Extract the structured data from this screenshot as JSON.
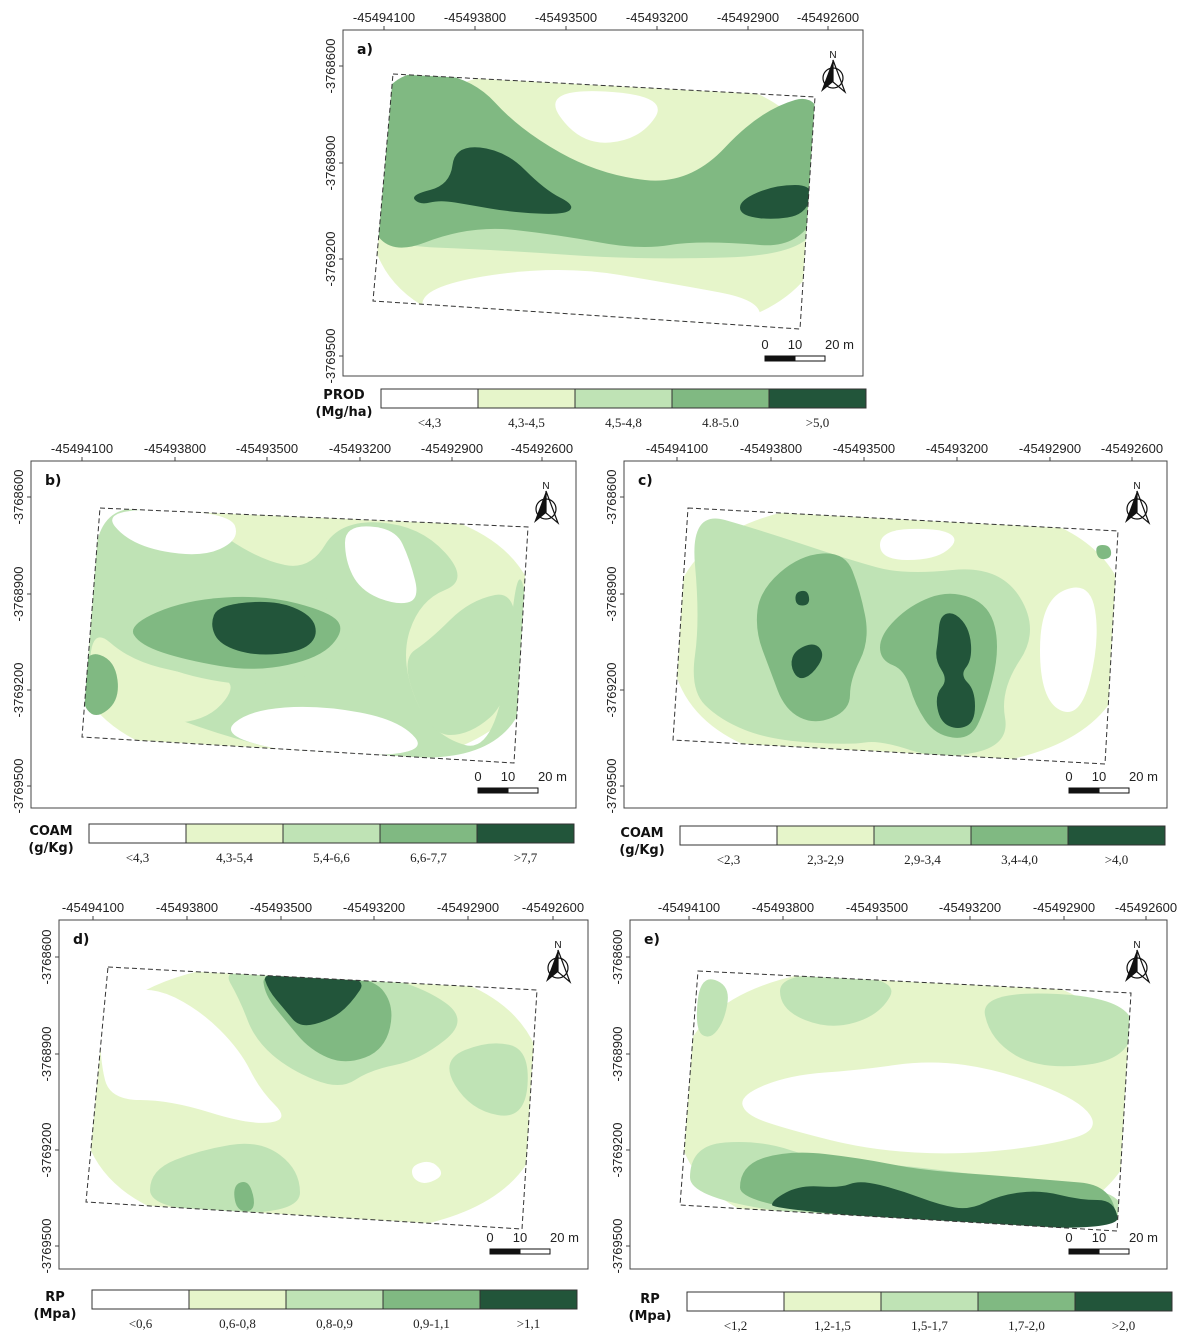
{
  "colors": {
    "c1": "#ffffff",
    "c2": "#e6f5ca",
    "c3": "#bfe3b5",
    "c4": "#80b982",
    "c5": "#22553a"
  },
  "x_ticks": [
    "-45494100",
    "-45493800",
    "-45493500",
    "-45493200",
    "-45492900",
    "-45492600"
  ],
  "y_ticks": [
    "-3768600",
    "-3768900",
    "-3769200",
    "-3769500"
  ],
  "north_label": "N",
  "scalebar": {
    "zero": "0",
    "mid": "10",
    "end": "20 m"
  },
  "panels": [
    {
      "id": "a",
      "label": "a)",
      "legend": {
        "title_line1": "PROD",
        "title_line2": "(Mg/ha)",
        "classes": [
          "<4,3",
          "4,3-4,5",
          "4,5-4,8",
          "4.8-5.0",
          ">5,0"
        ]
      }
    },
    {
      "id": "b",
      "label": "b)",
      "legend": {
        "title_line1": "COAM",
        "title_line2": "(g/Kg)",
        "classes": [
          "<4,3",
          "4,3-5,4",
          "5,4-6,6",
          "6,6-7,7",
          ">7,7"
        ]
      }
    },
    {
      "id": "c",
      "label": "c)",
      "legend": {
        "title_line1": "COAM",
        "title_line2": "(g/Kg)",
        "classes": [
          "<2,3",
          "2,3-2,9",
          "2,9-3,4",
          "3,4-4,0",
          ">4,0"
        ]
      }
    },
    {
      "id": "d",
      "label": "d)",
      "legend": {
        "title_line1": "RP",
        "title_line2": "(Mpa)",
        "classes": [
          "<0,6",
          "0,6-0,8",
          "0,8-0,9",
          "0,9-1,1",
          ">1,1"
        ]
      }
    },
    {
      "id": "e",
      "label": "e)",
      "legend": {
        "title_line1": "RP",
        "title_line2": "(Mpa)",
        "classes": [
          "<1,2",
          "1,2-1,5",
          "1,5-1,7",
          "1,7-2,0",
          ">2,0"
        ]
      }
    }
  ]
}
